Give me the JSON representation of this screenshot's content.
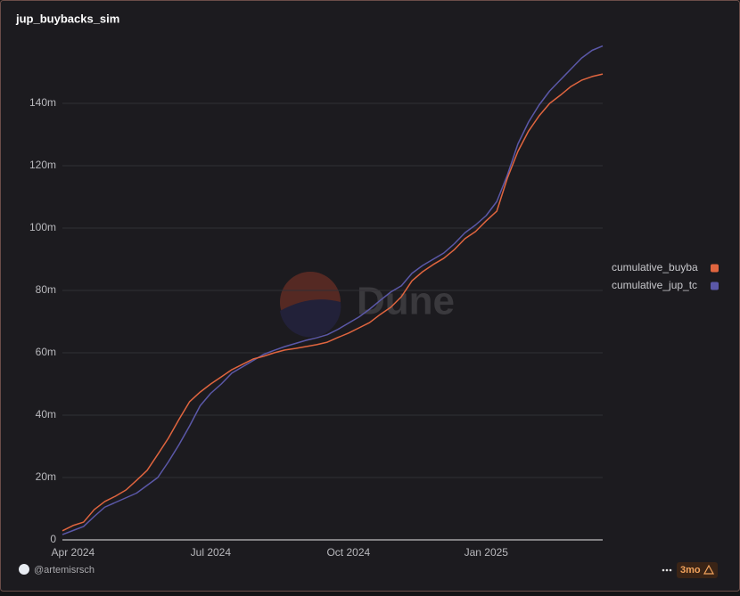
{
  "chart_data": {
    "type": "line",
    "title": "jup_buybacks_sim",
    "categories": [
      null,
      "Apr 2024",
      null,
      null,
      null,
      null,
      null,
      null,
      null,
      null,
      null,
      null,
      null,
      null,
      "Jul 2024",
      null,
      null,
      null,
      null,
      null,
      null,
      null,
      null,
      null,
      null,
      null,
      null,
      "Oct 2024",
      null,
      null,
      null,
      null,
      null,
      null,
      null,
      null,
      null,
      null,
      null,
      null,
      "Jan 2025",
      null,
      null,
      null,
      null,
      null,
      null,
      null,
      null,
      null,
      null,
      null
    ],
    "series": [
      {
        "name": "cumulative_buyba",
        "color": "#e0653f",
        "values": [
          2.9,
          4.6,
          5.7,
          9.7,
          12.3,
          14,
          16,
          19.1,
          22.3,
          27.4,
          32.6,
          38.6,
          44.3,
          47.4,
          50,
          52.3,
          54.6,
          56.3,
          58,
          58.9,
          60,
          60.9,
          61.4,
          62,
          62.6,
          63.4,
          64.9,
          66.3,
          68,
          69.7,
          72.3,
          74.6,
          78,
          83.1,
          86,
          88.3,
          90.3,
          93.1,
          96.6,
          98.9,
          102.3,
          105.4,
          116,
          124.6,
          131.1,
          136,
          140,
          142.6,
          145.4,
          147.4,
          148.6,
          149.4
        ]
      },
      {
        "name": "cumulative_jup_tc",
        "color": "#5b58a8",
        "values": [
          1.7,
          3,
          4.3,
          7.5,
          10.5,
          12,
          13.5,
          15,
          17.5,
          20,
          25,
          30.5,
          36.5,
          43,
          47,
          50,
          53.5,
          55.5,
          57.5,
          59.5,
          60.8,
          62,
          63,
          64,
          64.8,
          65.8,
          67.5,
          69.5,
          71.5,
          74,
          76.8,
          79.5,
          81.5,
          85.5,
          88,
          90,
          92,
          95,
          98.5,
          101,
          104,
          108.5,
          117,
          127,
          134,
          139.5,
          144,
          147.5,
          151,
          154.5,
          157,
          158.4
        ]
      }
    ],
    "ylim": [
      0,
      160
    ],
    "yticks": [
      0,
      {
        "value": 20,
        "label": "20m"
      },
      {
        "value": 40,
        "label": "40m"
      },
      {
        "value": 60,
        "label": "60m"
      },
      {
        "value": 80,
        "label": "80m"
      },
      {
        "value": 100,
        "label": "100m"
      },
      {
        "value": 120,
        "label": "120m"
      },
      {
        "value": 140,
        "label": "140m"
      }
    ],
    "grid": true,
    "legend": "right"
  },
  "watermark": "Dune",
  "footer": {
    "author": "@artemisrsch",
    "badge": "3mo"
  }
}
